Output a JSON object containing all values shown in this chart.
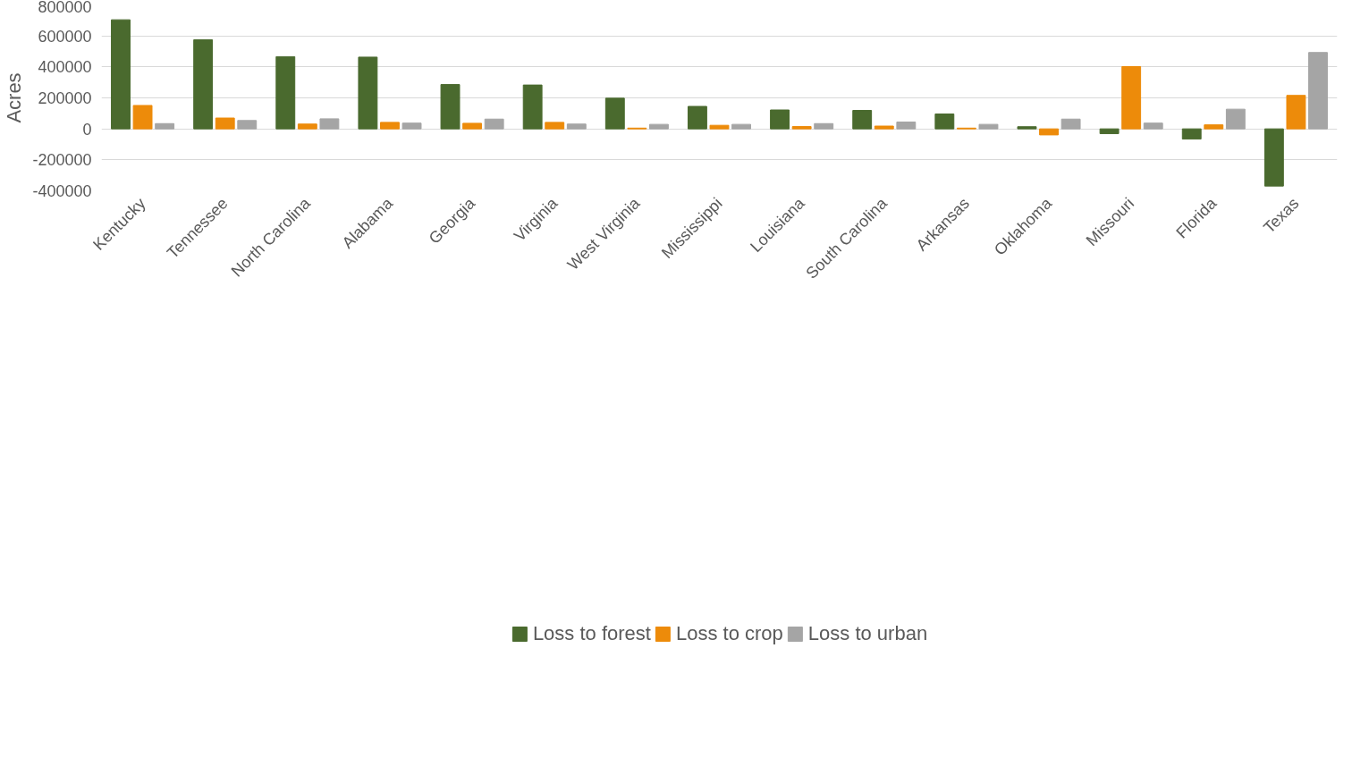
{
  "chart_data": {
    "type": "bar",
    "ylabel": "Acres",
    "categories": [
      "Kentucky",
      "Tennessee",
      "North Carolina",
      "Alabama",
      "Georgia",
      "Virginia",
      "West Virginia",
      "Mississippi",
      "Louisiana",
      "South Carolina",
      "Arkansas",
      "Oklahoma",
      "Missouri",
      "Florida",
      "Texas"
    ],
    "series": [
      {
        "name": "Loss to forest",
        "color": "#4a6a2e",
        "values": [
          704000,
          575000,
          466000,
          463000,
          286000,
          283000,
          198000,
          145000,
          122000,
          119000,
          96000,
          14000,
          -31000,
          -66000,
          -369000
        ]
      },
      {
        "name": "Loss to crop",
        "color": "#ed8b0a",
        "values": [
          151000,
          70000,
          31000,
          42000,
          36000,
          42000,
          5000,
          23000,
          15000,
          18000,
          5000,
          -39000,
          402000,
          26000,
          216000
        ]
      },
      {
        "name": "Loss to urban",
        "color": "#a5a5a5",
        "values": [
          34000,
          54000,
          65000,
          37000,
          63000,
          31000,
          29000,
          29000,
          34000,
          44000,
          29000,
          63000,
          37000,
          127000,
          493000
        ]
      }
    ],
    "ylim": [
      -400000,
      800000
    ],
    "yticks": [
      -400000,
      -200000,
      0,
      200000,
      400000,
      600000,
      800000
    ],
    "grid": "y",
    "legend": "bottom"
  }
}
